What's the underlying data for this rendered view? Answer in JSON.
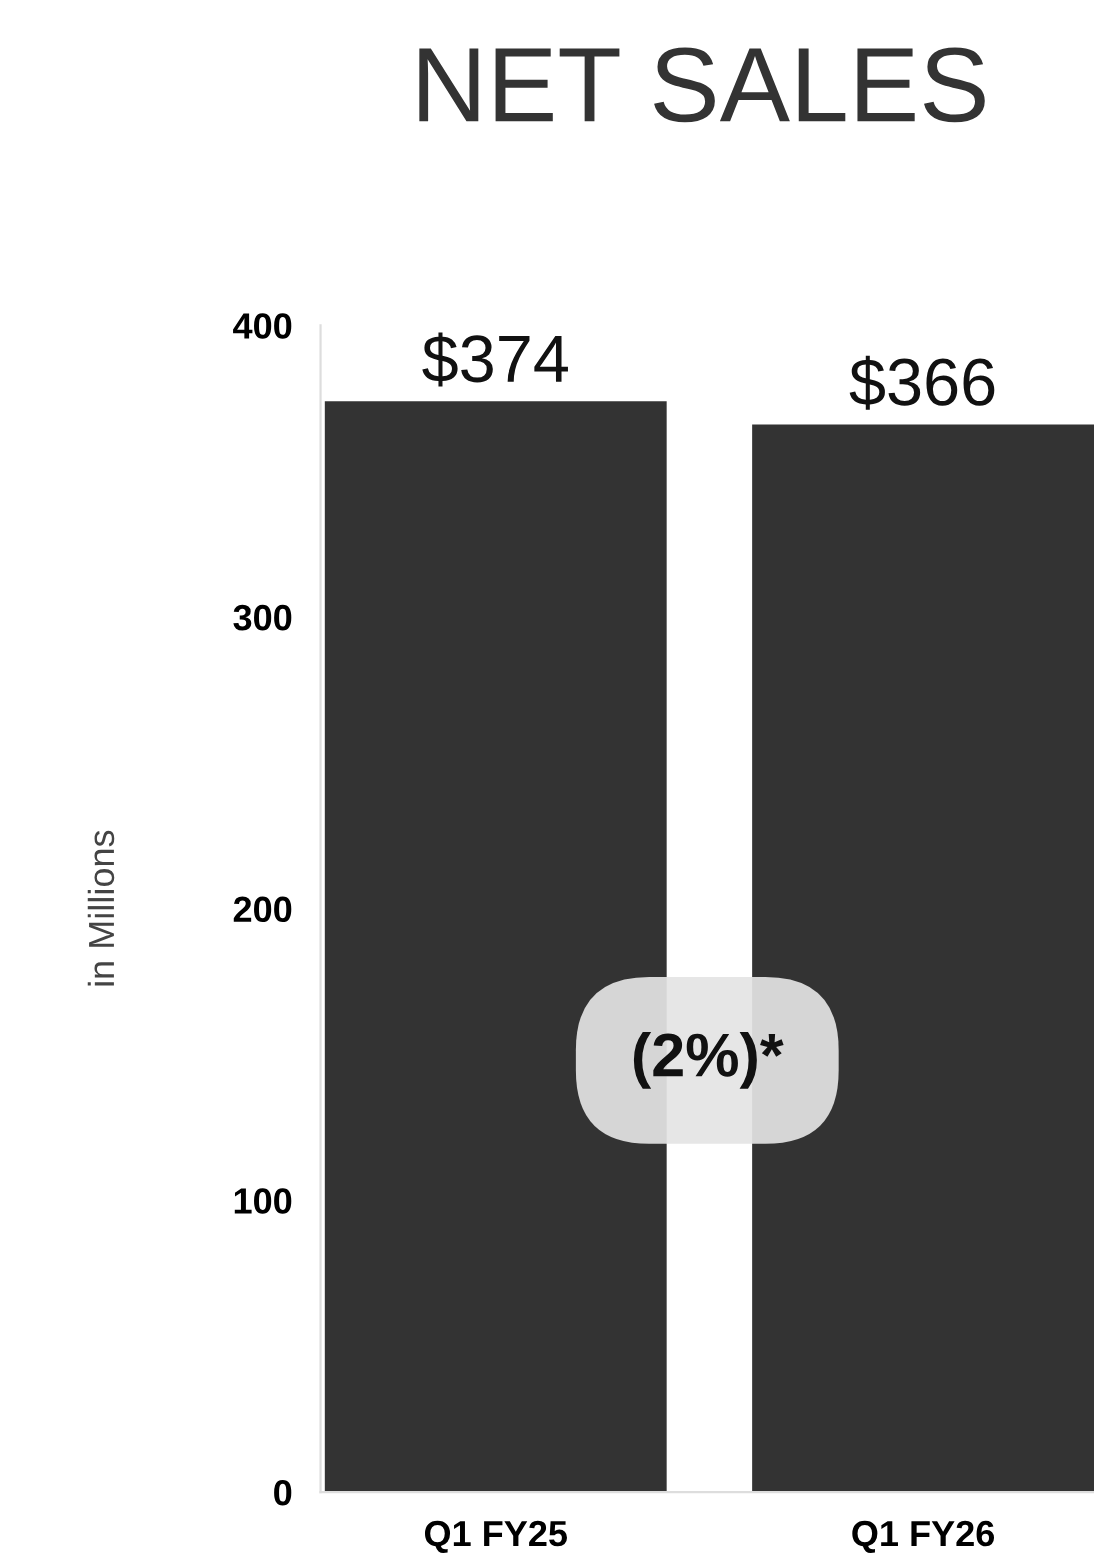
{
  "chart_data": {
    "type": "bar",
    "title": "NET SALES",
    "ylabel": "in Millions",
    "categories": [
      "Q1 FY25",
      "Q1 FY26"
    ],
    "values": [
      374,
      366
    ],
    "value_labels": [
      "$374",
      "$366"
    ],
    "color": "#333333",
    "ylim": [
      0,
      400
    ],
    "yticks": [
      0,
      100,
      200,
      300,
      400
    ],
    "annotations": [
      "(2%)*"
    ],
    "grid": false,
    "legend": false
  }
}
